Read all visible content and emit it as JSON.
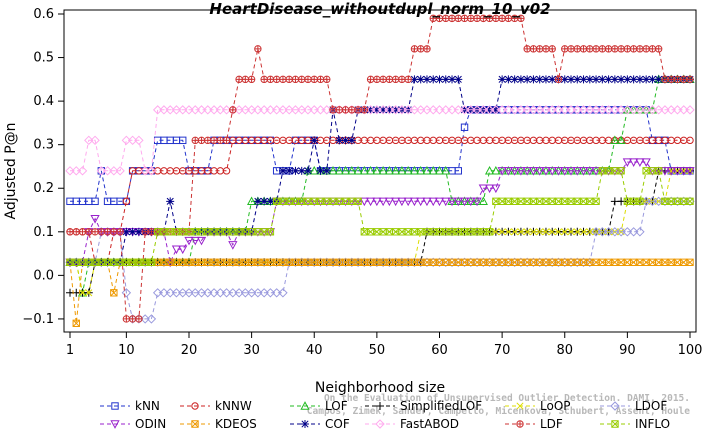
{
  "chart_data": {
    "type": "line",
    "title": "HeartDisease_withoutdupl_norm_10_v02",
    "xlabel": "Neighborhood size",
    "ylabel": "Adjusted P@n",
    "xlim": [
      1,
      100
    ],
    "ylim": [
      -0.13,
      0.6
    ],
    "x_ticks": [
      1,
      10,
      20,
      30,
      40,
      50,
      60,
      70,
      80,
      90,
      100
    ],
    "y_ticks": [
      -0.1,
      0.0,
      0.1,
      0.2,
      0.3,
      0.4,
      0.5,
      0.6
    ],
    "x_tick_labels": [
      "1",
      "10",
      "20",
      "30",
      "40",
      "50",
      "60",
      "70",
      "80",
      "90",
      "100"
    ],
    "y_tick_labels": [
      "−0.1",
      "0.0",
      "0.1",
      "0.2",
      "0.3",
      "0.4",
      "0.5",
      "0.6"
    ],
    "legend_position": "bottom",
    "watermark": [
      "Campos, Zimek, Sander, Campello, Micenkova, Schubert, Assent, Houle",
      "On the Evaluation of Unsupervised Outlier Detection. DAMI, 2015."
    ],
    "series": [
      {
        "name": "kNN",
        "color": "#2233cc",
        "marker": "square",
        "points": [
          [
            1,
            0.17
          ],
          [
            5,
            0.17
          ],
          [
            6,
            0.24
          ],
          [
            7,
            0.17
          ],
          [
            10,
            0.17
          ],
          [
            11,
            0.24
          ],
          [
            14,
            0.24
          ],
          [
            15,
            0.31
          ],
          [
            19,
            0.31
          ],
          [
            20,
            0.24
          ],
          [
            23,
            0.24
          ],
          [
            24,
            0.31
          ],
          [
            33,
            0.31
          ],
          [
            34,
            0.24
          ],
          [
            36,
            0.24
          ],
          [
            37,
            0.31
          ],
          [
            40,
            0.31
          ],
          [
            41,
            0.24
          ],
          [
            63,
            0.24
          ],
          [
            64,
            0.34
          ],
          [
            65,
            0.38
          ],
          [
            80,
            0.38
          ],
          [
            81,
            0.38
          ],
          [
            93,
            0.38
          ],
          [
            94,
            0.31
          ],
          [
            96,
            0.31
          ],
          [
            97,
            0.24
          ],
          [
            100,
            0.24
          ]
        ]
      },
      {
        "name": "kNNW",
        "color": "#cc2222",
        "marker": "circle",
        "points": [
          [
            1,
            0.1
          ],
          [
            4,
            0.1
          ],
          [
            5,
            0.03
          ],
          [
            8,
            0.1
          ],
          [
            10,
            0.17
          ],
          [
            11,
            0.24
          ],
          [
            25,
            0.24
          ],
          [
            26,
            0.24
          ],
          [
            27,
            0.31
          ],
          [
            60,
            0.31
          ],
          [
            61,
            0.31
          ],
          [
            100,
            0.31
          ]
        ]
      },
      {
        "name": "LOF",
        "color": "#22bb22",
        "marker": "triangle",
        "points": [
          [
            1,
            0.03
          ],
          [
            3,
            -0.04
          ],
          [
            4,
            0.03
          ],
          [
            20,
            0.03
          ],
          [
            21,
            0.1
          ],
          [
            25,
            0.1
          ],
          [
            28,
            0.1
          ],
          [
            29,
            0.1
          ],
          [
            30,
            0.17
          ],
          [
            38,
            0.17
          ],
          [
            39,
            0.24
          ],
          [
            57,
            0.24
          ],
          [
            58,
            0.24
          ],
          [
            62,
            0.17
          ],
          [
            67,
            0.17
          ],
          [
            68,
            0.24
          ],
          [
            84,
            0.24
          ],
          [
            88,
            0.31
          ],
          [
            90,
            0.38
          ],
          [
            93,
            0.38
          ],
          [
            95,
            0.45
          ],
          [
            100,
            0.45
          ]
        ]
      },
      {
        "name": "SimplifiedLOF",
        "color": "#000000",
        "marker": "plus",
        "points": [
          [
            1,
            -0.04
          ],
          [
            4,
            -0.04
          ],
          [
            5,
            0.03
          ],
          [
            57,
            0.03
          ],
          [
            58,
            0.1
          ],
          [
            87,
            0.1
          ],
          [
            88,
            0.17
          ],
          [
            94,
            0.17
          ],
          [
            95,
            0.24
          ],
          [
            100,
            0.24
          ]
        ]
      },
      {
        "name": "LoOP",
        "color": "#dddd00",
        "marker": "x",
        "points": [
          [
            1,
            0.03
          ],
          [
            3,
            -0.04
          ],
          [
            5,
            0.03
          ],
          [
            56,
            0.03
          ],
          [
            57,
            0.1
          ],
          [
            89,
            0.1
          ],
          [
            90,
            0.17
          ],
          [
            96,
            0.17
          ],
          [
            97,
            0.24
          ],
          [
            100,
            0.24
          ]
        ]
      },
      {
        "name": "LDOF",
        "color": "#9999dd",
        "marker": "diamond",
        "points": [
          [
            1,
            0.03
          ],
          [
            5,
            0.03
          ],
          [
            6,
            0.1
          ],
          [
            9,
            0.1
          ],
          [
            10,
            -0.04
          ],
          [
            11,
            -0.1
          ],
          [
            14,
            -0.1
          ],
          [
            15,
            -0.04
          ],
          [
            35,
            -0.04
          ],
          [
            36,
            0.03
          ],
          [
            84,
            0.03
          ],
          [
            85,
            0.1
          ],
          [
            92,
            0.1
          ],
          [
            93,
            0.17
          ],
          [
            100,
            0.17
          ]
        ]
      },
      {
        "name": "ODIN",
        "color": "#9922cc",
        "marker": "triangle-down",
        "points": [
          [
            1,
            0.03
          ],
          [
            4,
            0.1
          ],
          [
            5,
            0.13
          ],
          [
            6,
            0.1
          ],
          [
            17,
            0.03
          ],
          [
            18,
            0.06
          ],
          [
            20,
            0.08
          ],
          [
            23,
            0.1
          ],
          [
            27,
            0.07
          ],
          [
            28,
            0.1
          ],
          [
            34,
            0.17
          ],
          [
            66,
            0.17
          ],
          [
            67,
            0.2
          ],
          [
            70,
            0.24
          ],
          [
            89,
            0.24
          ],
          [
            90,
            0.26
          ],
          [
            94,
            0.24
          ],
          [
            100,
            0.24
          ]
        ]
      },
      {
        "name": "KDEOS",
        "color": "#ee9900",
        "marker": "square-x",
        "points": [
          [
            1,
            0.03
          ],
          [
            2,
            -0.11
          ],
          [
            3,
            0.03
          ],
          [
            7,
            0.03
          ],
          [
            8,
            -0.04
          ],
          [
            9,
            0.03
          ],
          [
            100,
            0.03
          ]
        ]
      },
      {
        "name": "COF",
        "color": "#000088",
        "marker": "star",
        "points": [
          [
            1,
            0.03
          ],
          [
            9,
            0.03
          ],
          [
            10,
            0.1
          ],
          [
            16,
            0.1
          ],
          [
            17,
            0.17
          ],
          [
            18,
            0.1
          ],
          [
            30,
            0.1
          ],
          [
            31,
            0.17
          ],
          [
            34,
            0.17
          ],
          [
            35,
            0.24
          ],
          [
            39,
            0.24
          ],
          [
            40,
            0.31
          ],
          [
            41,
            0.24
          ],
          [
            43,
            0.38
          ],
          [
            44,
            0.31
          ],
          [
            46,
            0.31
          ],
          [
            47,
            0.38
          ],
          [
            55,
            0.38
          ],
          [
            56,
            0.45
          ],
          [
            63,
            0.45
          ],
          [
            64,
            0.38
          ],
          [
            69,
            0.38
          ],
          [
            70,
            0.45
          ],
          [
            100,
            0.45
          ]
        ]
      },
      {
        "name": "FastABOD",
        "color": "#ffaaee",
        "marker": "diamond",
        "points": [
          [
            1,
            0.24
          ],
          [
            4,
            0.31
          ],
          [
            6,
            0.24
          ],
          [
            10,
            0.31
          ],
          [
            13,
            0.24
          ],
          [
            15,
            0.38
          ],
          [
            100,
            0.38
          ]
        ]
      },
      {
        "name": "LDF",
        "color": "#cc3333",
        "marker": "circle-plus",
        "points": [
          [
            1,
            0.1
          ],
          [
            9,
            0.1
          ],
          [
            10,
            -0.1
          ],
          [
            12,
            -0.1
          ],
          [
            13,
            0.1
          ],
          [
            20,
            0.1
          ],
          [
            21,
            0.31
          ],
          [
            26,
            0.31
          ],
          [
            27,
            0.38
          ],
          [
            28,
            0.45
          ],
          [
            30,
            0.45
          ],
          [
            31,
            0.52
          ],
          [
            32,
            0.45
          ],
          [
            35,
            0.45
          ],
          [
            42,
            0.45
          ],
          [
            43,
            0.38
          ],
          [
            48,
            0.38
          ],
          [
            49,
            0.45
          ],
          [
            55,
            0.45
          ],
          [
            56,
            0.52
          ],
          [
            58,
            0.52
          ],
          [
            59,
            0.59
          ],
          [
            73,
            0.59
          ],
          [
            74,
            0.52
          ],
          [
            78,
            0.52
          ],
          [
            79,
            0.45
          ],
          [
            80,
            0.52
          ],
          [
            95,
            0.52
          ],
          [
            96,
            0.45
          ],
          [
            100,
            0.45
          ]
        ]
      },
      {
        "name": "INFLO",
        "color": "#99cc00",
        "marker": "square-x",
        "points": [
          [
            1,
            0.03
          ],
          [
            14,
            0.03
          ],
          [
            15,
            0.1
          ],
          [
            33,
            0.1
          ],
          [
            34,
            0.17
          ],
          [
            47,
            0.17
          ],
          [
            48,
            0.1
          ],
          [
            50,
            0.1
          ],
          [
            51,
            0.1
          ],
          [
            57,
            0.1
          ],
          [
            58,
            0.1
          ],
          [
            59,
            0.1
          ],
          [
            69,
            0.17
          ],
          [
            85,
            0.17
          ],
          [
            86,
            0.24
          ],
          [
            89,
            0.24
          ],
          [
            90,
            0.17
          ],
          [
            93,
            0.24
          ],
          [
            95,
            0.24
          ],
          [
            96,
            0.17
          ],
          [
            100,
            0.17
          ]
        ]
      }
    ]
  }
}
